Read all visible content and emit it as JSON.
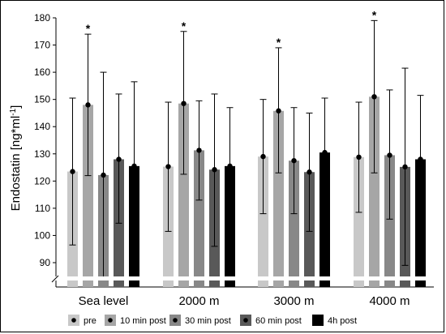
{
  "chart_data": {
    "type": "bar",
    "ylabel": "Endostatin [ng*ml",
    "ylabel_sup": "-1",
    "ylabel_end": "]",
    "ylim": [
      85,
      180
    ],
    "yticks": [
      90,
      100,
      110,
      120,
      130,
      140,
      150,
      160,
      170,
      180
    ],
    "axis_break": true,
    "grid": false,
    "legend_position": "bottom",
    "categories": [
      "Sea level",
      "2000 m",
      "3000 m",
      "4000 m"
    ],
    "series": [
      {
        "name": "pre",
        "color": "#c8c8c8",
        "values": [
          123.5,
          125.3,
          129.0,
          128.8
        ],
        "err_low": [
          96.5,
          101.5,
          108.0,
          108.5
        ],
        "err_high": [
          150.5,
          149.0,
          150.0,
          149.0
        ]
      },
      {
        "name": "10 min post",
        "color": "#a6a6a6",
        "values": [
          148.0,
          148.5,
          145.8,
          151.0
        ],
        "err_low": [
          122.0,
          122.5,
          123.0,
          123.0
        ],
        "err_high": [
          174.0,
          175.0,
          169.0,
          179.0
        ]
      },
      {
        "name": "30 min post",
        "color": "#888888",
        "values": [
          122.2,
          131.3,
          127.5,
          129.5
        ],
        "err_low": [
          84.5,
          113.0,
          108.0,
          106.0
        ],
        "err_high": [
          160.0,
          149.5,
          147.0,
          153.5
        ]
      },
      {
        "name": "60 min post",
        "color": "#595959",
        "values": [
          128.0,
          124.2,
          123.3,
          125.2
        ],
        "err_low": [
          104.5,
          96.0,
          101.5,
          89.0
        ],
        "err_high": [
          152.0,
          152.0,
          145.0,
          161.5
        ]
      },
      {
        "name": "4h post",
        "color": "#000000",
        "values": [
          125.5,
          125.5,
          130.5,
          128.0
        ],
        "err_low": [
          null,
          null,
          null,
          null
        ],
        "err_high": [
          156.5,
          147.0,
          150.5,
          151.5
        ]
      }
    ],
    "significance": [
      {
        "category_index": 0,
        "series_index": 1,
        "label": "*"
      },
      {
        "category_index": 1,
        "series_index": 1,
        "label": "*"
      },
      {
        "category_index": 2,
        "series_index": 1,
        "label": "*"
      },
      {
        "category_index": 3,
        "series_index": 1,
        "label": "*"
      }
    ]
  }
}
